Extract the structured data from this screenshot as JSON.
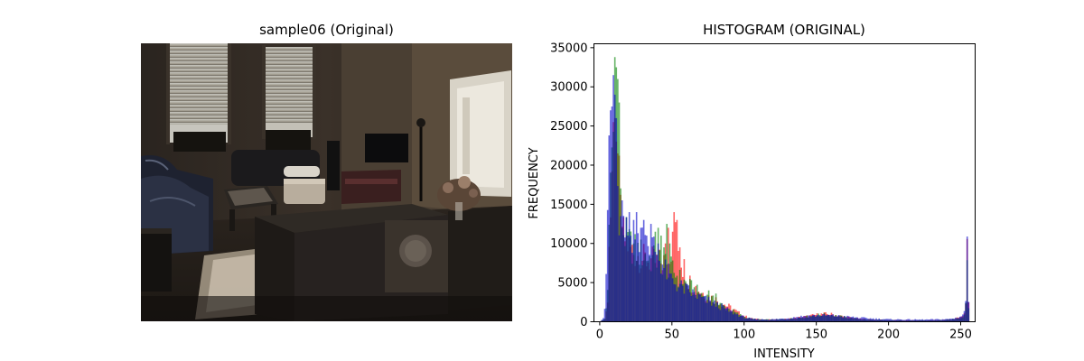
{
  "left_panel": {
    "title": "sample06 (Original)"
  },
  "chart_data": {
    "type": "bar",
    "title": "HISTOGRAM (ORIGINAL)",
    "xlabel": "INTENSITY",
    "ylabel": "FREQUENCY",
    "xlim": [
      -4,
      260
    ],
    "ylim": [
      0,
      35500
    ],
    "xticks": [
      0,
      50,
      100,
      150,
      200,
      250
    ],
    "yticks": [
      0,
      5000,
      10000,
      15000,
      20000,
      25000,
      30000,
      35000
    ],
    "grid": false,
    "bins": 256,
    "series": [
      {
        "color": "#ff0000",
        "opacity": 0.6,
        "anchors": [
          [
            0,
            50
          ],
          [
            3,
            300
          ],
          [
            5,
            2500
          ],
          [
            6,
            9000
          ],
          [
            7,
            16000
          ],
          [
            8,
            21000
          ],
          [
            9,
            23000
          ],
          [
            10,
            22000
          ],
          [
            11,
            20000
          ],
          [
            12,
            18500
          ],
          [
            13,
            17000
          ],
          [
            14,
            14000
          ],
          [
            16,
            11000
          ],
          [
            20,
            9500
          ],
          [
            25,
            8500
          ],
          [
            30,
            8000
          ],
          [
            35,
            7800
          ],
          [
            40,
            7500
          ],
          [
            45,
            7800
          ],
          [
            48,
            9000
          ],
          [
            50,
            10000
          ],
          [
            52,
            11000
          ],
          [
            54,
            9500
          ],
          [
            56,
            7000
          ],
          [
            60,
            5500
          ],
          [
            65,
            4500
          ],
          [
            70,
            3800
          ],
          [
            75,
            3200
          ],
          [
            80,
            2800
          ],
          [
            85,
            2300
          ],
          [
            90,
            1800
          ],
          [
            95,
            1200
          ],
          [
            100,
            700
          ],
          [
            105,
            400
          ],
          [
            110,
            300
          ],
          [
            120,
            250
          ],
          [
            130,
            350
          ],
          [
            140,
            600
          ],
          [
            150,
            900
          ],
          [
            155,
            1000
          ],
          [
            160,
            950
          ],
          [
            170,
            600
          ],
          [
            180,
            350
          ],
          [
            190,
            250
          ],
          [
            200,
            200
          ],
          [
            210,
            180
          ],
          [
            220,
            170
          ],
          [
            230,
            180
          ],
          [
            240,
            250
          ],
          [
            245,
            350
          ],
          [
            250,
            600
          ],
          [
            252,
            1000
          ],
          [
            253,
            3000
          ],
          [
            254,
            8500
          ],
          [
            255,
            2000
          ]
        ],
        "spikes": [
          [
            9,
            25500
          ],
          [
            10,
            26000
          ],
          [
            11,
            23000
          ],
          [
            12,
            21500
          ],
          [
            45,
            10000
          ],
          [
            47,
            12000
          ],
          [
            50,
            11500
          ],
          [
            51,
            14000
          ],
          [
            53,
            13000
          ],
          [
            55,
            9500
          ],
          [
            58,
            8000
          ]
        ]
      },
      {
        "color": "#008000",
        "opacity": 0.6,
        "anchors": [
          [
            0,
            50
          ],
          [
            3,
            400
          ],
          [
            5,
            3500
          ],
          [
            6,
            11000
          ],
          [
            7,
            19000
          ],
          [
            8,
            22000
          ],
          [
            9,
            24000
          ],
          [
            10,
            24500
          ],
          [
            11,
            22000
          ],
          [
            12,
            20000
          ],
          [
            13,
            18000
          ],
          [
            14,
            14500
          ],
          [
            16,
            11500
          ],
          [
            20,
            10000
          ],
          [
            25,
            9000
          ],
          [
            30,
            8500
          ],
          [
            35,
            8000
          ],
          [
            40,
            7800
          ],
          [
            45,
            7500
          ],
          [
            50,
            6500
          ],
          [
            55,
            5500
          ],
          [
            60,
            4800
          ],
          [
            65,
            4000
          ],
          [
            70,
            3500
          ],
          [
            75,
            3000
          ],
          [
            80,
            2500
          ],
          [
            85,
            2000
          ],
          [
            90,
            1500
          ],
          [
            95,
            1000
          ],
          [
            100,
            600
          ],
          [
            105,
            350
          ],
          [
            110,
            280
          ],
          [
            120,
            250
          ],
          [
            130,
            350
          ],
          [
            140,
            550
          ],
          [
            150,
            850
          ],
          [
            155,
            900
          ],
          [
            160,
            850
          ],
          [
            170,
            550
          ],
          [
            180,
            320
          ],
          [
            190,
            230
          ],
          [
            200,
            190
          ],
          [
            210,
            170
          ],
          [
            220,
            160
          ],
          [
            230,
            170
          ],
          [
            240,
            230
          ],
          [
            245,
            330
          ],
          [
            250,
            550
          ],
          [
            252,
            900
          ],
          [
            253,
            2800
          ],
          [
            254,
            8000
          ],
          [
            255,
            1800
          ]
        ],
        "spikes": [
          [
            10,
            33800
          ],
          [
            11,
            32500
          ],
          [
            12,
            31000
          ],
          [
            13,
            28000
          ],
          [
            38,
            11500
          ],
          [
            40,
            12000
          ],
          [
            42,
            11000
          ],
          [
            44,
            9500
          ],
          [
            46,
            12500
          ],
          [
            48,
            10000
          ],
          [
            75,
            4000
          ],
          [
            80,
            3600
          ]
        ]
      },
      {
        "color": "#0000c8",
        "opacity": 0.6,
        "anchors": [
          [
            0,
            100
          ],
          [
            2,
            500
          ],
          [
            3,
            1800
          ],
          [
            4,
            5000
          ],
          [
            5,
            14000
          ],
          [
            6,
            23000
          ],
          [
            7,
            25500
          ],
          [
            8,
            26500
          ],
          [
            9,
            25000
          ],
          [
            10,
            22000
          ],
          [
            11,
            18000
          ],
          [
            12,
            15000
          ],
          [
            13,
            13000
          ],
          [
            14,
            12000
          ],
          [
            16,
            11000
          ],
          [
            18,
            11000
          ],
          [
            20,
            11000
          ],
          [
            25,
            11000
          ],
          [
            30,
            10500
          ],
          [
            35,
            10000
          ],
          [
            40,
            8500
          ],
          [
            45,
            6500
          ],
          [
            50,
            5200
          ],
          [
            55,
            4500
          ],
          [
            60,
            4000
          ],
          [
            65,
            3500
          ],
          [
            70,
            3000
          ],
          [
            75,
            2600
          ],
          [
            80,
            2200
          ],
          [
            85,
            1800
          ],
          [
            90,
            1300
          ],
          [
            95,
            900
          ],
          [
            100,
            550
          ],
          [
            105,
            350
          ],
          [
            110,
            300
          ],
          [
            120,
            300
          ],
          [
            130,
            450
          ],
          [
            140,
            700
          ],
          [
            150,
            800
          ],
          [
            155,
            820
          ],
          [
            160,
            800
          ],
          [
            170,
            650
          ],
          [
            180,
            500
          ],
          [
            190,
            380
          ],
          [
            200,
            300
          ],
          [
            210,
            280
          ],
          [
            220,
            260
          ],
          [
            230,
            280
          ],
          [
            240,
            320
          ],
          [
            245,
            420
          ],
          [
            250,
            700
          ],
          [
            252,
            1200
          ],
          [
            253,
            3000
          ],
          [
            254,
            8900
          ],
          [
            255,
            3000
          ]
        ],
        "spikes": [
          [
            7,
            27000
          ],
          [
            9,
            31500
          ],
          [
            10,
            29000
          ],
          [
            11,
            26000
          ],
          [
            15,
            15500
          ],
          [
            20,
            14000
          ],
          [
            23,
            13000
          ],
          [
            25,
            14000
          ],
          [
            28,
            12000
          ],
          [
            30,
            13000
          ],
          [
            32,
            11000
          ],
          [
            35,
            12500
          ],
          [
            40,
            10000
          ]
        ]
      }
    ]
  }
}
